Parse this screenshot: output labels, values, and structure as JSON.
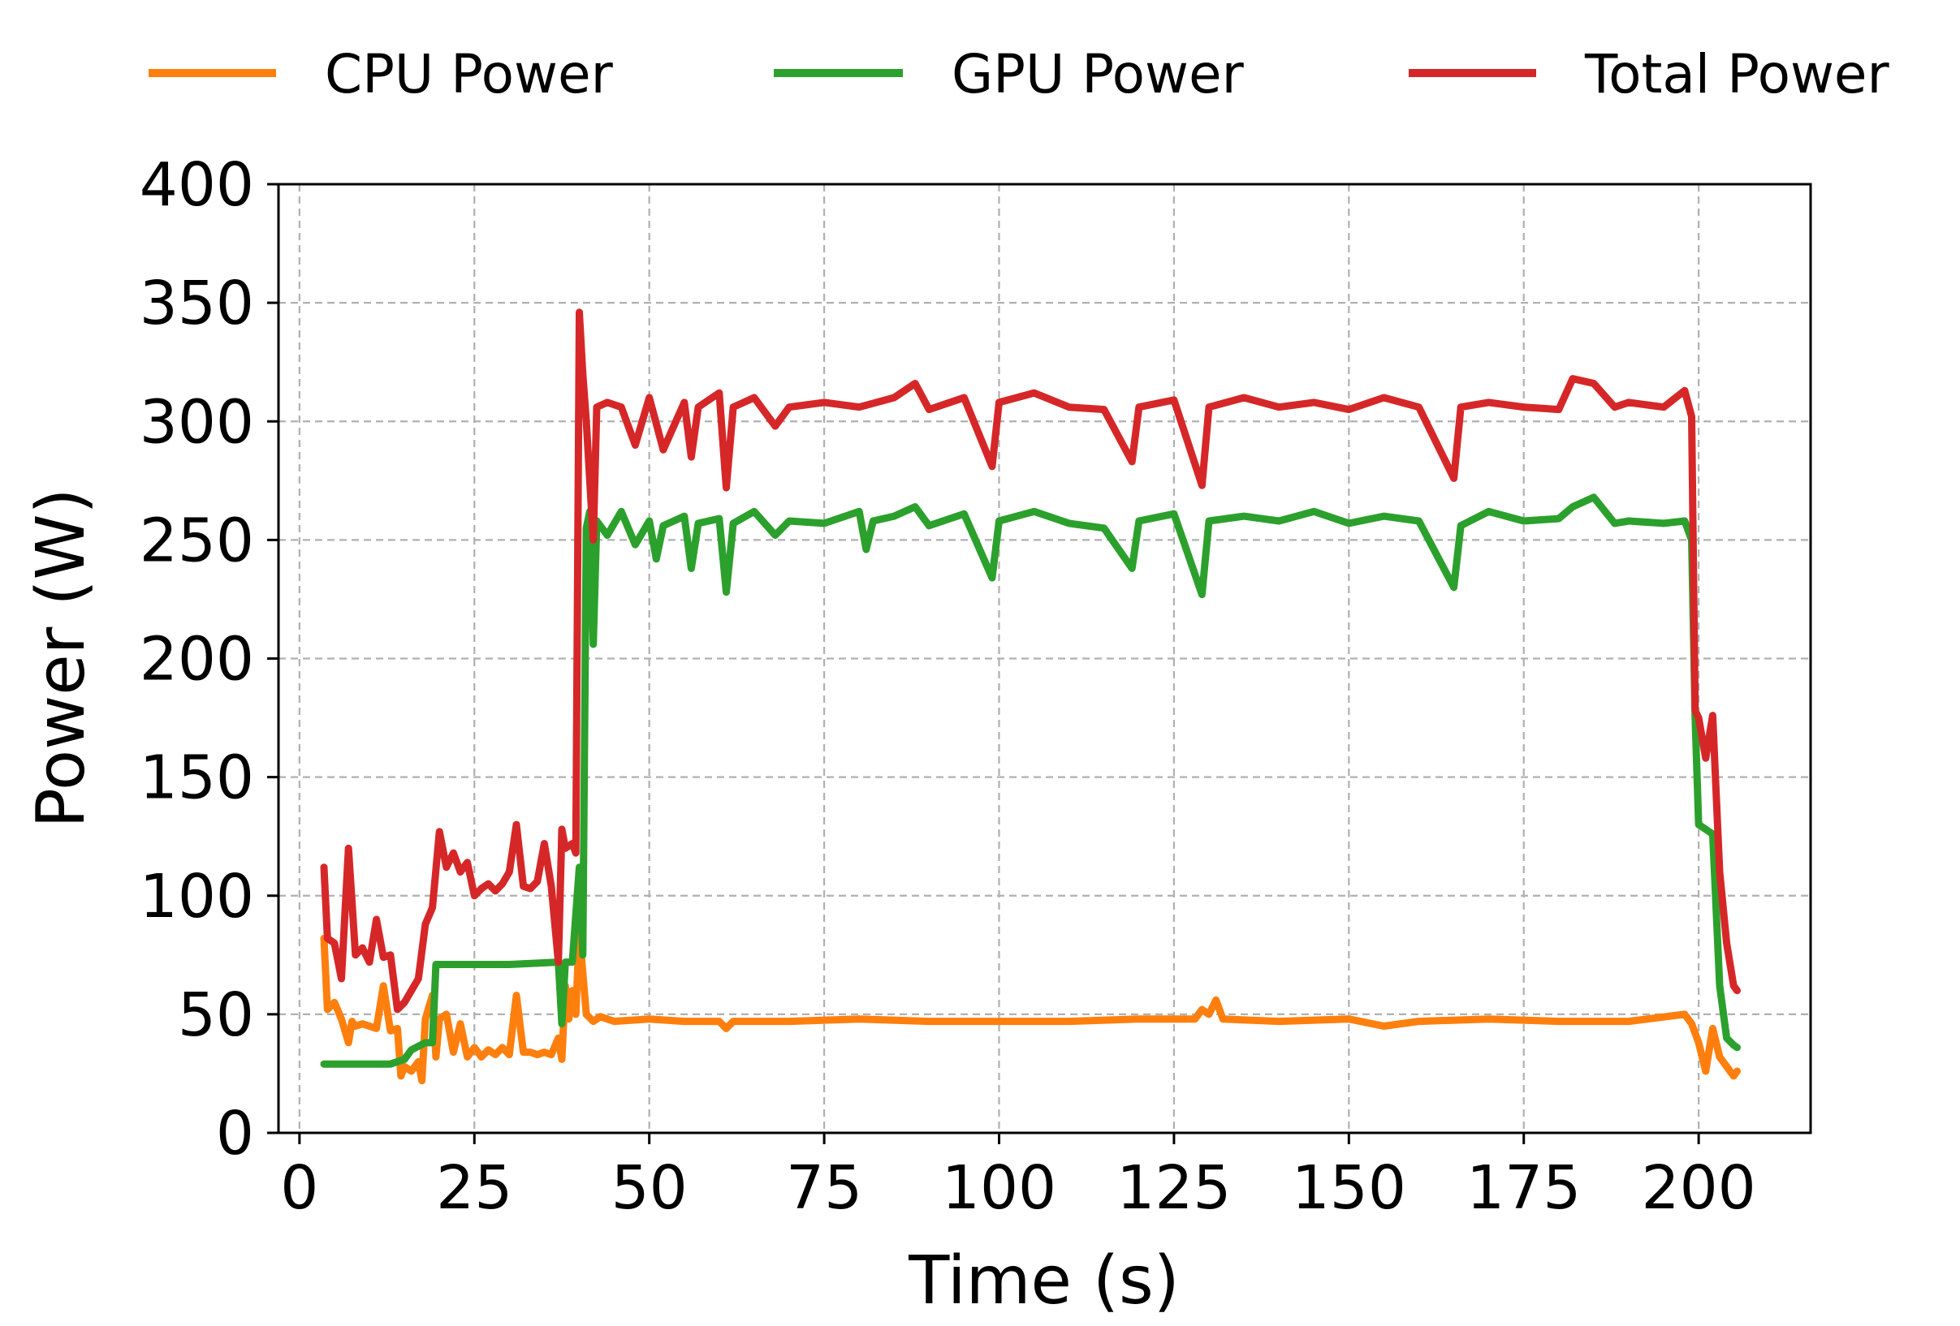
{
  "chart_data": {
    "type": "line",
    "title": "",
    "xlabel": "Time (s)",
    "ylabel": "Power (W)",
    "xlim": [
      -3,
      216
    ],
    "ylim": [
      0,
      400
    ],
    "xticks": [
      0,
      25,
      50,
      75,
      100,
      125,
      150,
      175,
      200
    ],
    "yticks": [
      0,
      50,
      100,
      150,
      200,
      250,
      300,
      350,
      400
    ],
    "grid": true,
    "legend_position": "top, outside plot area, horizontal",
    "series": [
      {
        "name": "CPU Power",
        "color": "#ff7f0e",
        "points": [
          [
            3.5,
            82
          ],
          [
            4,
            52
          ],
          [
            5,
            55
          ],
          [
            6,
            48
          ],
          [
            7,
            38
          ],
          [
            7.5,
            47
          ],
          [
            8,
            45
          ],
          [
            9,
            46
          ],
          [
            10,
            45
          ],
          [
            11,
            44
          ],
          [
            12,
            62
          ],
          [
            13,
            43
          ],
          [
            14,
            44
          ],
          [
            14.5,
            24
          ],
          [
            15,
            28
          ],
          [
            16,
            26
          ],
          [
            17,
            30
          ],
          [
            17.5,
            22
          ],
          [
            18,
            48
          ],
          [
            19,
            58
          ],
          [
            19.5,
            32
          ],
          [
            20,
            48
          ],
          [
            21,
            50
          ],
          [
            22,
            34
          ],
          [
            23,
            46
          ],
          [
            24,
            32
          ],
          [
            25,
            36
          ],
          [
            26,
            32
          ],
          [
            27,
            35
          ],
          [
            28,
            33
          ],
          [
            29,
            36
          ],
          [
            30,
            33
          ],
          [
            31,
            58
          ],
          [
            32,
            34
          ],
          [
            33,
            34
          ],
          [
            34,
            33
          ],
          [
            35,
            34
          ],
          [
            36,
            33
          ],
          [
            37,
            40
          ],
          [
            37.5,
            31
          ],
          [
            38,
            62
          ],
          [
            38.5,
            48
          ],
          [
            39,
            60
          ],
          [
            39.5,
            50
          ],
          [
            40,
            85
          ],
          [
            41,
            50
          ],
          [
            42,
            47
          ],
          [
            43,
            49
          ],
          [
            45,
            47
          ],
          [
            50,
            48
          ],
          [
            55,
            47
          ],
          [
            60,
            47
          ],
          [
            61,
            44
          ],
          [
            62,
            47
          ],
          [
            70,
            47
          ],
          [
            80,
            48
          ],
          [
            90,
            47
          ],
          [
            100,
            47
          ],
          [
            110,
            47
          ],
          [
            120,
            48
          ],
          [
            128,
            48
          ],
          [
            129,
            52
          ],
          [
            130,
            50
          ],
          [
            131,
            56
          ],
          [
            132,
            48
          ],
          [
            140,
            47
          ],
          [
            150,
            48
          ],
          [
            155,
            45
          ],
          [
            160,
            47
          ],
          [
            170,
            48
          ],
          [
            180,
            47
          ],
          [
            190,
            47
          ],
          [
            198,
            50
          ],
          [
            199,
            46
          ],
          [
            200,
            38
          ],
          [
            201,
            26
          ],
          [
            202,
            44
          ],
          [
            203,
            32
          ],
          [
            204,
            28
          ],
          [
            205,
            24
          ],
          [
            205.5,
            26
          ]
        ]
      },
      {
        "name": "GPU Power",
        "color": "#2ca02c",
        "points": [
          [
            3.5,
            29
          ],
          [
            8,
            29
          ],
          [
            13,
            29
          ],
          [
            15,
            31
          ],
          [
            16,
            35
          ],
          [
            18,
            38
          ],
          [
            19,
            38
          ],
          [
            19.5,
            71
          ],
          [
            20,
            71
          ],
          [
            30,
            71
          ],
          [
            37,
            72
          ],
          [
            37.5,
            46
          ],
          [
            38,
            72
          ],
          [
            39,
            72
          ],
          [
            40,
            112
          ],
          [
            40.5,
            75
          ],
          [
            41,
            255
          ],
          [
            41.5,
            262
          ],
          [
            42,
            206
          ],
          [
            42.5,
            258
          ],
          [
            44,
            252
          ],
          [
            46,
            262
          ],
          [
            48,
            248
          ],
          [
            50,
            258
          ],
          [
            51,
            242
          ],
          [
            52,
            256
          ],
          [
            55,
            260
          ],
          [
            56,
            238
          ],
          [
            57,
            257
          ],
          [
            60,
            259
          ],
          [
            61,
            228
          ],
          [
            62,
            257
          ],
          [
            65,
            262
          ],
          [
            68,
            252
          ],
          [
            70,
            258
          ],
          [
            75,
            257
          ],
          [
            80,
            262
          ],
          [
            81,
            246
          ],
          [
            82,
            258
          ],
          [
            85,
            260
          ],
          [
            88,
            264
          ],
          [
            90,
            256
          ],
          [
            95,
            261
          ],
          [
            99,
            234
          ],
          [
            100,
            258
          ],
          [
            105,
            262
          ],
          [
            110,
            257
          ],
          [
            115,
            255
          ],
          [
            119,
            238
          ],
          [
            120,
            258
          ],
          [
            125,
            261
          ],
          [
            129,
            227
          ],
          [
            130,
            258
          ],
          [
            135,
            260
          ],
          [
            140,
            258
          ],
          [
            145,
            262
          ],
          [
            150,
            257
          ],
          [
            155,
            260
          ],
          [
            160,
            258
          ],
          [
            165,
            230
          ],
          [
            166,
            256
          ],
          [
            170,
            262
          ],
          [
            175,
            258
          ],
          [
            180,
            259
          ],
          [
            182,
            264
          ],
          [
            185,
            268
          ],
          [
            188,
            257
          ],
          [
            190,
            258
          ],
          [
            195,
            257
          ],
          [
            198,
            258
          ],
          [
            199,
            250
          ],
          [
            199.5,
            175
          ],
          [
            200,
            130
          ],
          [
            201,
            128
          ],
          [
            202,
            126
          ],
          [
            203,
            62
          ],
          [
            204,
            40
          ],
          [
            205,
            37
          ],
          [
            205.5,
            36
          ]
        ]
      },
      {
        "name": "Total Power",
        "color": "#d62728",
        "points": [
          [
            3.5,
            112
          ],
          [
            4,
            82
          ],
          [
            5,
            80
          ],
          [
            6,
            65
          ],
          [
            7,
            120
          ],
          [
            8,
            75
          ],
          [
            9,
            78
          ],
          [
            10,
            72
          ],
          [
            11,
            90
          ],
          [
            12,
            74
          ],
          [
            13,
            75
          ],
          [
            14,
            52
          ],
          [
            15,
            55
          ],
          [
            16,
            60
          ],
          [
            17,
            65
          ],
          [
            18,
            88
          ],
          [
            19,
            95
          ],
          [
            20,
            127
          ],
          [
            21,
            112
          ],
          [
            22,
            118
          ],
          [
            23,
            110
          ],
          [
            24,
            114
          ],
          [
            25,
            100
          ],
          [
            26,
            103
          ],
          [
            27,
            105
          ],
          [
            28,
            102
          ],
          [
            29,
            105
          ],
          [
            30,
            110
          ],
          [
            31,
            130
          ],
          [
            32,
            104
          ],
          [
            33,
            103
          ],
          [
            34,
            106
          ],
          [
            35,
            122
          ],
          [
            36,
            104
          ],
          [
            37,
            72
          ],
          [
            37.5,
            128
          ],
          [
            38,
            120
          ],
          [
            39,
            122
          ],
          [
            39.5,
            118
          ],
          [
            40,
            346
          ],
          [
            40.5,
            320
          ],
          [
            41,
            300
          ],
          [
            42,
            250
          ],
          [
            42.5,
            306
          ],
          [
            44,
            308
          ],
          [
            46,
            306
          ],
          [
            48,
            290
          ],
          [
            50,
            310
          ],
          [
            52,
            288
          ],
          [
            55,
            308
          ],
          [
            56,
            285
          ],
          [
            57,
            306
          ],
          [
            60,
            312
          ],
          [
            61,
            272
          ],
          [
            62,
            306
          ],
          [
            65,
            310
          ],
          [
            68,
            298
          ],
          [
            70,
            306
          ],
          [
            75,
            308
          ],
          [
            80,
            306
          ],
          [
            85,
            310
          ],
          [
            88,
            316
          ],
          [
            90,
            305
          ],
          [
            95,
            310
          ],
          [
            99,
            281
          ],
          [
            100,
            308
          ],
          [
            105,
            312
          ],
          [
            110,
            306
          ],
          [
            115,
            305
          ],
          [
            119,
            283
          ],
          [
            120,
            306
          ],
          [
            125,
            309
          ],
          [
            129,
            273
          ],
          [
            130,
            306
          ],
          [
            135,
            310
          ],
          [
            140,
            306
          ],
          [
            145,
            308
          ],
          [
            150,
            305
          ],
          [
            155,
            310
          ],
          [
            160,
            306
          ],
          [
            165,
            276
          ],
          [
            166,
            306
          ],
          [
            170,
            308
          ],
          [
            175,
            306
          ],
          [
            180,
            305
          ],
          [
            182,
            318
          ],
          [
            185,
            316
          ],
          [
            188,
            306
          ],
          [
            190,
            308
          ],
          [
            195,
            306
          ],
          [
            198,
            313
          ],
          [
            199,
            302
          ],
          [
            199.5,
            178
          ],
          [
            200,
            175
          ],
          [
            201,
            158
          ],
          [
            202,
            176
          ],
          [
            203,
            110
          ],
          [
            204,
            80
          ],
          [
            205,
            62
          ],
          [
            205.5,
            60
          ]
        ]
      }
    ]
  },
  "legend": {
    "items": [
      {
        "label": "CPU Power",
        "color": "#ff7f0e"
      },
      {
        "label": "GPU Power",
        "color": "#2ca02c"
      },
      {
        "label": "Total Power",
        "color": "#d62728"
      }
    ]
  }
}
